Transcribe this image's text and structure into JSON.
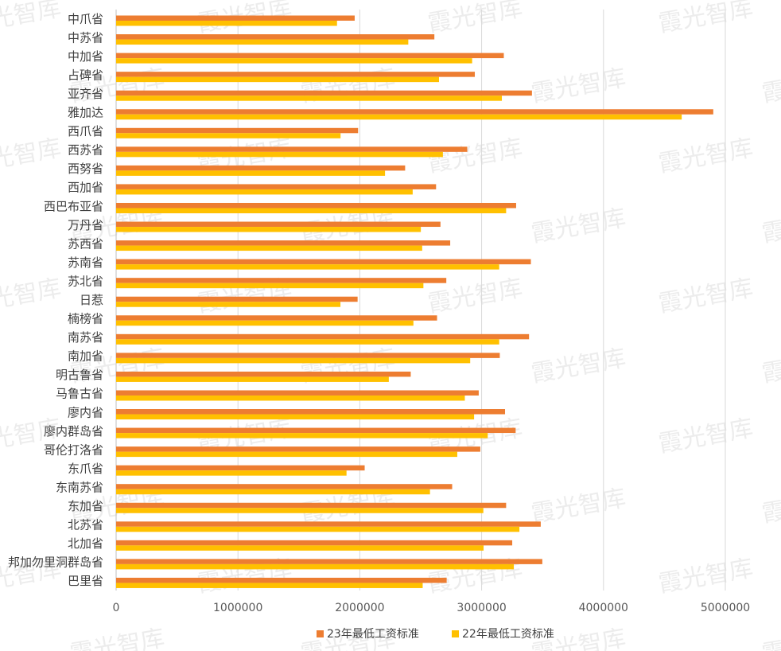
{
  "chart_data": {
    "type": "bar",
    "orientation": "horizontal",
    "title": "",
    "xlabel": "",
    "ylabel": "",
    "xlim": [
      0,
      5000000
    ],
    "x_ticks": [
      "0",
      "1000000",
      "2000000",
      "3000000",
      "4000000",
      "5000000"
    ],
    "grid": true,
    "legend_position": "bottom",
    "categories": [
      "中爪省",
      "中苏省",
      "中加省",
      "占碑省",
      "亚齐省",
      "雅加达",
      "西爪省",
      "西苏省",
      "西努省",
      "西加省",
      "西巴布亚省",
      "万丹省",
      "苏西省",
      "苏南省",
      "苏北省",
      "日惹",
      "楠榜省",
      "南苏省",
      "南加省",
      "明古鲁省",
      "马鲁古省",
      "廖内省",
      "廖内群岛省",
      "哥伦打洛省",
      "东爪省",
      "东南苏省",
      "东加省",
      "北苏省",
      "北加省",
      "邦加勿里洞群岛省",
      "巴里省"
    ],
    "series": [
      {
        "name": "23年最低工资标准",
        "color": "#ED7D31",
        "values": [
          1958000,
          2612000,
          3182000,
          2944000,
          3413000,
          4901000,
          1986000,
          2882000,
          2372000,
          2626000,
          3283000,
          2662000,
          2742000,
          3404000,
          2710000,
          1982000,
          2634000,
          3389000,
          3149000,
          2418000,
          2976000,
          3192000,
          3279000,
          2989000,
          2040000,
          2758000,
          3201000,
          3485000,
          3251000,
          3498000,
          2713000
        ]
      },
      {
        "name": "22年最低工资标准",
        "color": "#FFC000",
        "values": [
          1813000,
          2398000,
          2922000,
          2650000,
          3166000,
          4642000,
          1842000,
          2682000,
          2207000,
          2434000,
          3201000,
          2501000,
          2512000,
          3144000,
          2522000,
          1841000,
          2440000,
          3144000,
          2906000,
          2238000,
          2862000,
          2938000,
          3050000,
          2800000,
          1891000,
          2576000,
          3014000,
          3310000,
          3016000,
          3264000,
          2516000
        ]
      }
    ]
  },
  "watermark": {
    "text": "霞光智库"
  },
  "colors": {
    "grid": "#D9D9D9",
    "axis": "#BFBFBF"
  }
}
